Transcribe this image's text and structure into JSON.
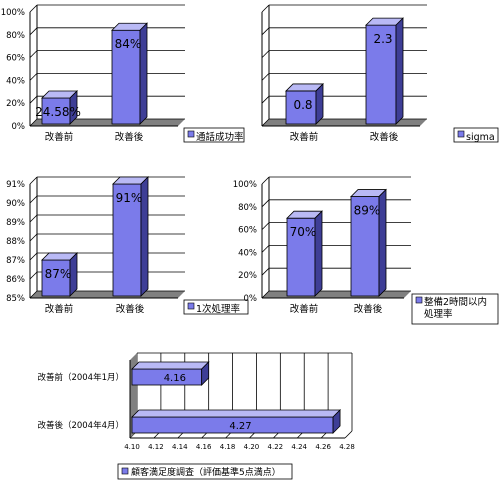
{
  "colors": {
    "bar_front": "#7B7BEA",
    "bar_top": "#B9B9F5",
    "bar_side": "#3E3E96",
    "floor": "#808080",
    "grid": "#000000"
  },
  "chart_data": [
    {
      "type": "bar",
      "orientation": "vertical",
      "categories": [
        "改善前",
        "改善後"
      ],
      "values": [
        24.58,
        84
      ],
      "data_labels": [
        "24.58%",
        "84%"
      ],
      "yticks": [
        "0%",
        "20%",
        "40%",
        "60%",
        "80%",
        "100%"
      ],
      "ylim": [
        0,
        100
      ],
      "legend": "通話成功率",
      "legend_position": "right"
    },
    {
      "type": "bar",
      "orientation": "vertical",
      "categories": [
        "改善前",
        "改善後"
      ],
      "values": [
        0.8,
        2.3
      ],
      "data_labels": [
        "0.8",
        "2.3"
      ],
      "yticks": [],
      "ylim": [
        0,
        2.6
      ],
      "legend": "sigma",
      "legend_position": "right"
    },
    {
      "type": "bar",
      "orientation": "vertical",
      "categories": [
        "改善前",
        "改善後"
      ],
      "values": [
        87,
        91
      ],
      "data_labels": [
        "87%",
        "91%"
      ],
      "yticks": [
        "85%",
        "86%",
        "87%",
        "88%",
        "89%",
        "90%",
        "91%"
      ],
      "ylim": [
        85,
        91
      ],
      "legend": "1次処理率",
      "legend_position": "right"
    },
    {
      "type": "bar",
      "orientation": "vertical",
      "categories": [
        "改善前",
        "改善後"
      ],
      "values": [
        70,
        89
      ],
      "data_labels": [
        "70%",
        "89%"
      ],
      "yticks": [
        "0%",
        "20%",
        "40%",
        "60%",
        "80%",
        "100%"
      ],
      "ylim": [
        0,
        100
      ],
      "legend": "整備2時間以内\n処理率",
      "legend_position": "right"
    },
    {
      "type": "bar",
      "orientation": "horizontal",
      "categories": [
        "改善前（2004年1月）",
        "改善後（2004年4月）"
      ],
      "values": [
        4.16,
        4.27
      ],
      "data_labels": [
        "4.16",
        "4.27"
      ],
      "xticks": [
        "4.10",
        "4.12",
        "4.14",
        "4.16",
        "4.18",
        "4.20",
        "4.22",
        "4.24",
        "4.26",
        "4.28"
      ],
      "xlim": [
        4.1,
        4.28
      ],
      "legend": "顧客満足度調査（評価基準5点満点）",
      "legend_position": "bottom"
    }
  ]
}
